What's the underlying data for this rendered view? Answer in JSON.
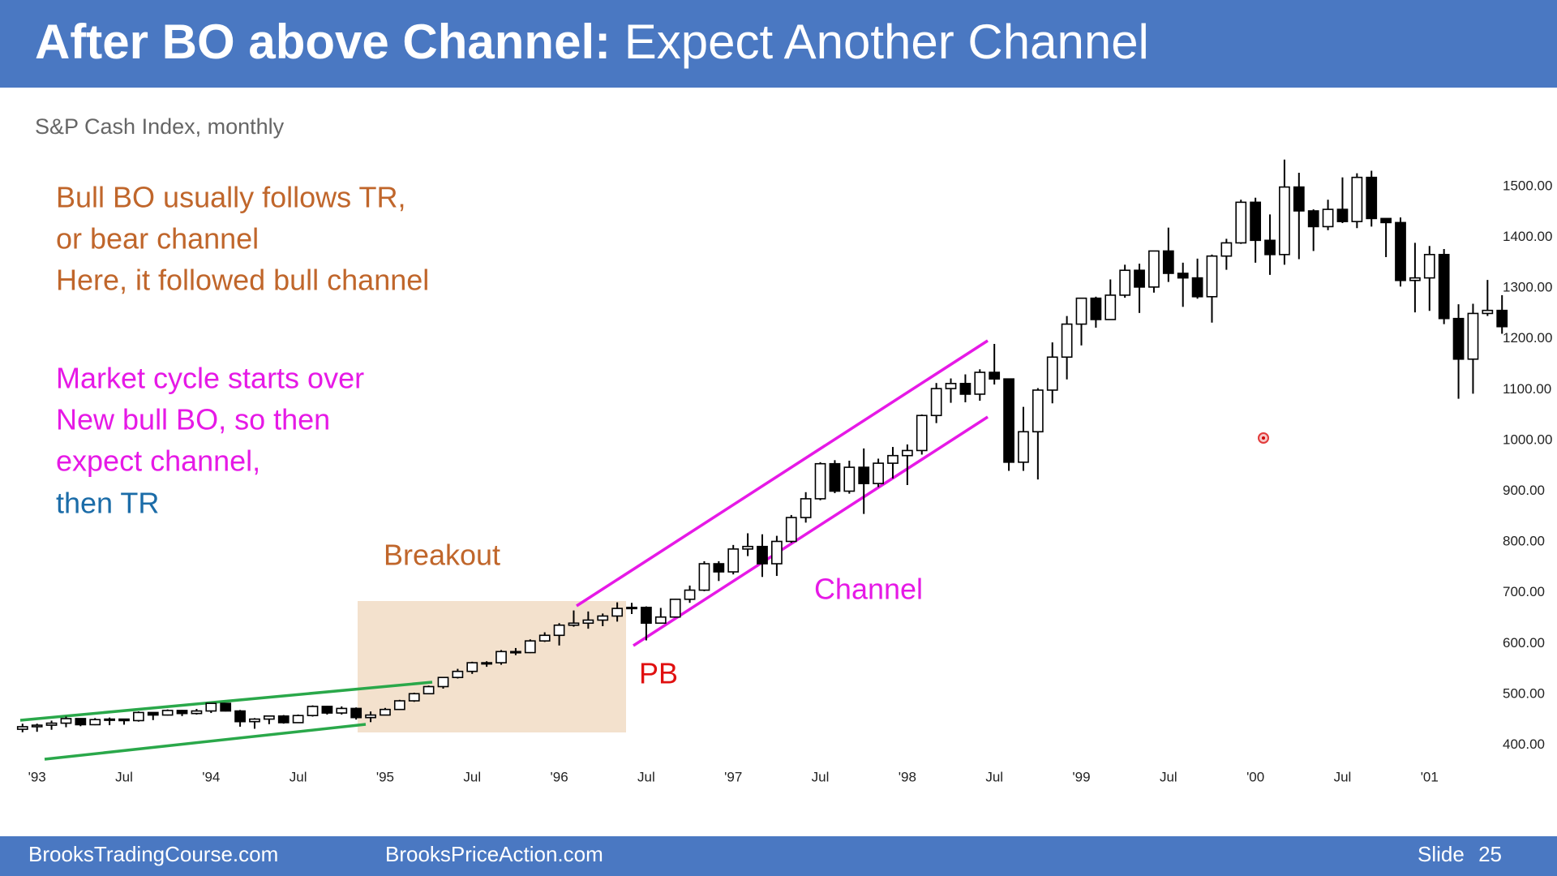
{
  "header": {
    "title_bold": "After BO above Channel:",
    "title_rest": "Expect Another Channel"
  },
  "chart_data": {
    "type": "candlestick",
    "subtitle": "S&P Cash Index, monthly",
    "annotations": [
      {
        "text": "Bull BO usually follows TR,",
        "color": "#c0662b"
      },
      {
        "text": "or bear channel",
        "color": "#c0662b"
      },
      {
        "text": "Here, it followed bull channel",
        "color": "#c0662b"
      },
      {
        "text": "Market cycle starts over",
        "color": "#e619e6"
      },
      {
        "text": "New bull BO, so then",
        "color": "#e619e6"
      },
      {
        "text": "expect channel,",
        "color": "#e619e6"
      },
      {
        "text": "then TR",
        "color": "#1b6ca8"
      },
      {
        "text": "Breakout",
        "color": "#c0662b"
      },
      {
        "text": "Channel",
        "color": "#e619e6"
      },
      {
        "text": "PB",
        "color": "#e01010"
      }
    ],
    "up_color": "#ffffff",
    "down_color": "#000000",
    "open": [
      431,
      436,
      439,
      443,
      452,
      440,
      450,
      451,
      448,
      464,
      459,
      468,
      462,
      467,
      482,
      467,
      446,
      451,
      457,
      444,
      458,
      476,
      463,
      472,
      454,
      459,
      470,
      487,
      501,
      515,
      533,
      545,
      562,
      562,
      584,
      582,
      605,
      616,
      636,
      640,
      646,
      654,
      669,
      671,
      640,
      652,
      687,
      705,
      757,
      741,
      786,
      791,
      757,
      801,
      848,
      885,
      954,
      900,
      947,
      915,
      955,
      970,
      980,
      1049,
      1102,
      1112,
      1091,
      1134,
      1121,
      957,
      1017,
      1099,
      1164,
      1229,
      1280,
      1238,
      1286,
      1335,
      1302,
      1373,
      1329,
      1320,
      1283,
      1363,
      1389,
      1469,
      1394,
      1366,
      1499,
      1452,
      1421,
      1455,
      1431,
      1518,
      1437,
      1429,
      1315,
      1320,
      1366,
      1240,
      1160,
      1250,
      1256
    ],
    "high": [
      442,
      442,
      448,
      456,
      449,
      453,
      454,
      451,
      466,
      464,
      470,
      469,
      471,
      483,
      482,
      469,
      453,
      458,
      459,
      460,
      478,
      477,
      476,
      474,
      466,
      473,
      489,
      503,
      517,
      534,
      550,
      564,
      565,
      587,
      591,
      608,
      622,
      640,
      665,
      663,
      659,
      681,
      680,
      673,
      670,
      688,
      714,
      762,
      762,
      794,
      817,
      815,
      812,
      853,
      898,
      957,
      961,
      960,
      984,
      964,
      987,
      992,
      1051,
      1113,
      1122,
      1130,
      1140,
      1190,
      1121,
      1066,
      1103,
      1193,
      1245,
      1280,
      1283,
      1317,
      1346,
      1348,
      1373,
      1419,
      1350,
      1358,
      1366,
      1397,
      1474,
      1478,
      1445,
      1553,
      1527,
      1455,
      1474,
      1518,
      1526,
      1531,
      1437,
      1439,
      1389,
      1383,
      1377,
      1268,
      1269,
      1316,
      1286
    ],
    "low": [
      425,
      426,
      430,
      435,
      437,
      439,
      439,
      440,
      446,
      449,
      458,
      457,
      460,
      463,
      466,
      436,
      432,
      441,
      442,
      444,
      456,
      460,
      460,
      450,
      445,
      459,
      469,
      485,
      500,
      511,
      531,
      540,
      554,
      558,
      577,
      581,
      603,
      596,
      633,
      629,
      634,
      643,
      658,
      606,
      639,
      651,
      680,
      703,
      723,
      736,
      772,
      731,
      733,
      798,
      838,
      882,
      896,
      895,
      855,
      908,
      925,
      912,
      972,
      1034,
      1074,
      1075,
      1078,
      1110,
      940,
      940,
      923,
      1073,
      1120,
      1187,
      1222,
      1239,
      1281,
      1251,
      1291,
      1312,
      1263,
      1279,
      1232,
      1336,
      1387,
      1350,
      1326,
      1346,
      1357,
      1373,
      1414,
      1428,
      1418,
      1421,
      1361,
      1303,
      1252,
      1255,
      1229,
      1082,
      1092,
      1245,
      1210
    ],
    "close": [
      436,
      439,
      443,
      452,
      440,
      450,
      451,
      448,
      464,
      459,
      468,
      462,
      467,
      482,
      467,
      446,
      451,
      457,
      444,
      458,
      476,
      463,
      472,
      454,
      459,
      470,
      487,
      501,
      515,
      533,
      545,
      562,
      562,
      584,
      582,
      605,
      616,
      636,
      640,
      646,
      654,
      669,
      671,
      640,
      652,
      687,
      705,
      757,
      741,
      786,
      791,
      757,
      801,
      848,
      885,
      954,
      900,
      947,
      915,
      955,
      970,
      980,
      1049,
      1102,
      1112,
      1091,
      1134,
      1121,
      957,
      1017,
      1099,
      1164,
      1229,
      1280,
      1238,
      1286,
      1335,
      1302,
      1373,
      1329,
      1320,
      1283,
      1363,
      1389,
      1469,
      1394,
      1366,
      1499,
      1452,
      1421,
      1455,
      1431,
      1518,
      1437,
      1429,
      1315,
      1320,
      1366,
      1240,
      1160,
      1250,
      1256,
      1224
    ],
    "xlim": [
      -1,
      103
    ],
    "xticks": [
      {
        "value": 1,
        "label": "'93"
      },
      {
        "value": 7,
        "label": "Jul"
      },
      {
        "value": 13,
        "label": "'94"
      },
      {
        "value": 19,
        "label": "Jul"
      },
      {
        "value": 25,
        "label": "'95"
      },
      {
        "value": 31,
        "label": "Jul"
      },
      {
        "value": 37,
        "label": "'96"
      },
      {
        "value": 43,
        "label": "Jul"
      },
      {
        "value": 49,
        "label": "'97"
      },
      {
        "value": 55,
        "label": "Jul"
      },
      {
        "value": 61,
        "label": "'98"
      },
      {
        "value": 67,
        "label": "Jul"
      },
      {
        "value": 73,
        "label": "'99"
      },
      {
        "value": 79,
        "label": "Jul"
      },
      {
        "value": 85,
        "label": "'00"
      },
      {
        "value": 91,
        "label": "Jul"
      },
      {
        "value": 97,
        "label": "'01"
      }
    ],
    "ylim": [
      380,
      1560
    ],
    "yticks": [
      {
        "value": 400,
        "label": "400.00"
      },
      {
        "value": 500,
        "label": "500.00"
      },
      {
        "value": 600,
        "label": "600.00"
      },
      {
        "value": 700,
        "label": "700.00"
      },
      {
        "value": 800,
        "label": "800.00"
      },
      {
        "value": 900,
        "label": "900.00"
      },
      {
        "value": 1000,
        "label": "1000.00"
      },
      {
        "value": 1100,
        "label": "1100.00"
      },
      {
        "value": 1200,
        "label": "1200.00"
      },
      {
        "value": 1300,
        "label": "1300.00"
      },
      {
        "value": 1400,
        "label": "1400.00"
      },
      {
        "value": 1500,
        "label": "1500.00"
      }
    ]
  },
  "footer": {
    "left": "BrooksTradingCourse.com",
    "middle": "BrooksPriceAction.com",
    "slide_label": "Slide",
    "slide_number": 25
  }
}
